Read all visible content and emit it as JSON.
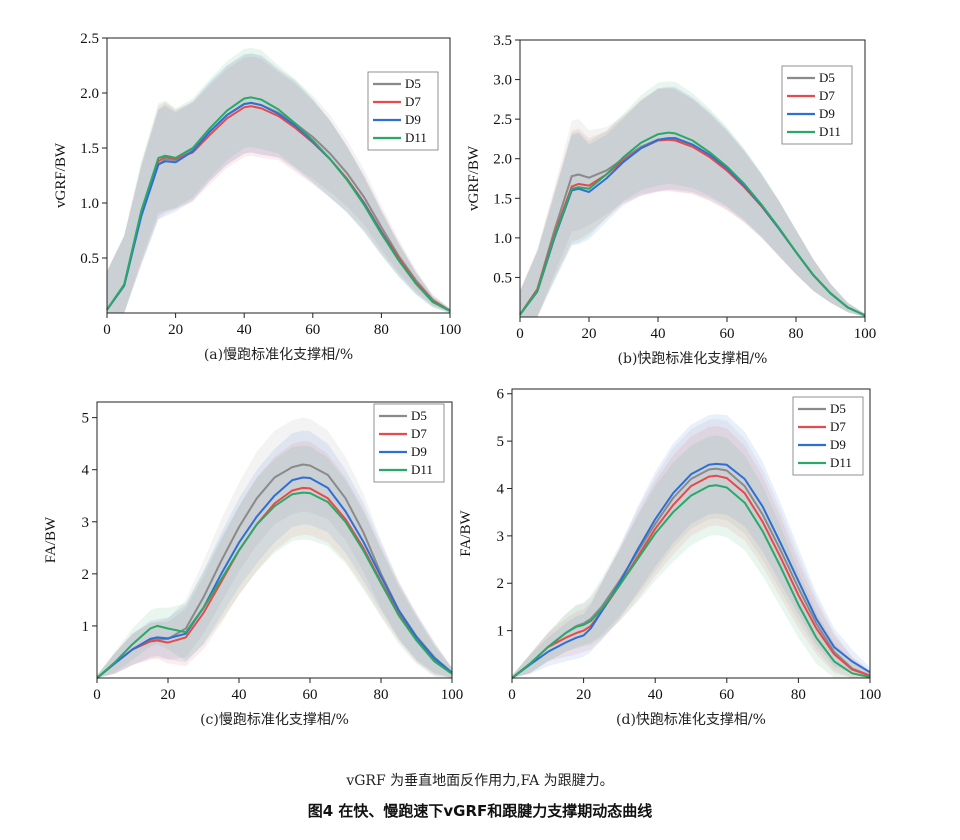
{
  "figure": {
    "note": "vGRF 为垂直地面反作用力,FA 为跟腱力。",
    "title": "图4 在快、慢跑速下vGRF和跟腱力支撑期动态曲线"
  },
  "colors": {
    "D5": "#8a8a8a",
    "D7": "#e8494b",
    "D9": "#2e6fd6",
    "D11": "#2aa866"
  },
  "chart_data": [
    {
      "panel": "a",
      "type": "line",
      "caption": "(a)慢跑标准化支撑相/%",
      "ylabel": "vGRF/BW",
      "xlim": [
        0,
        100
      ],
      "ylim": [
        0,
        2.5
      ],
      "xticks": [
        "0",
        "20",
        "40",
        "60",
        "80",
        "100"
      ],
      "yticks": [
        {
          "v": 0.5,
          "label": "0.5"
        },
        {
          "v": 1.0,
          "label": "1.0"
        },
        {
          "v": 1.5,
          "label": "1.5"
        },
        {
          "v": 2.0,
          "label": "2.0"
        },
        {
          "v": 2.5,
          "label": "2.5"
        }
      ],
      "legend": "top-right",
      "x": [
        0,
        5,
        10,
        15,
        17,
        20,
        25,
        30,
        35,
        40,
        42,
        45,
        50,
        55,
        60,
        65,
        70,
        75,
        80,
        85,
        90,
        95,
        100
      ],
      "band": [
        0.35,
        0.45,
        0.45,
        0.5,
        0.5,
        0.45,
        0.45,
        0.45,
        0.45,
        0.45,
        0.45,
        0.45,
        0.4,
        0.4,
        0.38,
        0.35,
        0.3,
        0.25,
        0.2,
        0.15,
        0.1,
        0.05,
        0.02
      ],
      "series": [
        {
          "name": "D5",
          "values": [
            0.03,
            0.25,
            0.9,
            1.35,
            1.4,
            1.39,
            1.48,
            1.65,
            1.8,
            1.9,
            1.91,
            1.89,
            1.82,
            1.72,
            1.6,
            1.45,
            1.27,
            1.05,
            0.78,
            0.52,
            0.3,
            0.12,
            0.02
          ]
        },
        {
          "name": "D7",
          "values": [
            0.03,
            0.25,
            0.9,
            1.38,
            1.42,
            1.4,
            1.46,
            1.62,
            1.77,
            1.87,
            1.88,
            1.86,
            1.79,
            1.68,
            1.55,
            1.4,
            1.22,
            1.0,
            0.74,
            0.5,
            0.28,
            0.11,
            0.02
          ]
        },
        {
          "name": "D9",
          "values": [
            0.03,
            0.25,
            0.88,
            1.35,
            1.38,
            1.37,
            1.47,
            1.65,
            1.8,
            1.9,
            1.91,
            1.89,
            1.81,
            1.7,
            1.56,
            1.4,
            1.21,
            0.99,
            0.73,
            0.48,
            0.27,
            0.1,
            0.02
          ]
        },
        {
          "name": "D11",
          "values": [
            0.03,
            0.26,
            0.93,
            1.41,
            1.43,
            1.41,
            1.5,
            1.68,
            1.84,
            1.95,
            1.96,
            1.94,
            1.85,
            1.72,
            1.57,
            1.4,
            1.21,
            0.98,
            0.72,
            0.48,
            0.27,
            0.1,
            0.02
          ]
        }
      ]
    },
    {
      "panel": "b",
      "type": "line",
      "caption": "(b)快跑标准化支撑相/%",
      "ylabel": "vGRF/BW",
      "xlim": [
        0,
        100
      ],
      "ylim": [
        0,
        3.5
      ],
      "xticks": [
        "0",
        "20",
        "40",
        "60",
        "80",
        "100"
      ],
      "yticks": [
        {
          "v": 0.5,
          "label": "0.5"
        },
        {
          "v": 1.0,
          "label": "1.0"
        },
        {
          "v": 1.5,
          "label": "1.5"
        },
        {
          "v": 2.0,
          "label": "2.0"
        },
        {
          "v": 2.5,
          "label": "2.5"
        },
        {
          "v": 3.0,
          "label": "3.0"
        },
        {
          "v": 3.5,
          "label": "3.5"
        }
      ],
      "legend": "top-right",
      "x": [
        0,
        5,
        10,
        15,
        17,
        20,
        25,
        30,
        35,
        40,
        43,
        45,
        50,
        55,
        60,
        65,
        70,
        75,
        80,
        85,
        90,
        95,
        100
      ],
      "band": [
        0.3,
        0.5,
        0.55,
        0.7,
        0.7,
        0.6,
        0.55,
        0.55,
        0.6,
        0.65,
        0.65,
        0.65,
        0.6,
        0.55,
        0.5,
        0.45,
        0.4,
        0.35,
        0.28,
        0.2,
        0.12,
        0.06,
        0.02
      ],
      "series": [
        {
          "name": "D5",
          "values": [
            0.03,
            0.35,
            1.1,
            1.78,
            1.8,
            1.76,
            1.85,
            2.0,
            2.15,
            2.24,
            2.25,
            2.24,
            2.16,
            2.02,
            1.85,
            1.65,
            1.4,
            1.12,
            0.82,
            0.53,
            0.3,
            0.12,
            0.02
          ]
        },
        {
          "name": "D7",
          "values": [
            0.03,
            0.35,
            1.05,
            1.65,
            1.68,
            1.66,
            1.8,
            1.98,
            2.13,
            2.23,
            2.24,
            2.23,
            2.15,
            2.02,
            1.85,
            1.64,
            1.4,
            1.12,
            0.82,
            0.53,
            0.3,
            0.12,
            0.02
          ]
        },
        {
          "name": "D9",
          "values": [
            0.03,
            0.32,
            1.0,
            1.6,
            1.62,
            1.58,
            1.75,
            1.96,
            2.13,
            2.24,
            2.26,
            2.26,
            2.18,
            2.05,
            1.88,
            1.66,
            1.41,
            1.12,
            0.82,
            0.53,
            0.3,
            0.12,
            0.02
          ]
        },
        {
          "name": "D11",
          "values": [
            0.03,
            0.33,
            1.02,
            1.62,
            1.64,
            1.62,
            1.8,
            2.02,
            2.2,
            2.31,
            2.33,
            2.32,
            2.23,
            2.08,
            1.9,
            1.68,
            1.42,
            1.13,
            0.82,
            0.53,
            0.3,
            0.12,
            0.02
          ]
        }
      ]
    },
    {
      "panel": "c",
      "type": "line",
      "caption": "(c)慢跑标准化支撑相/%",
      "ylabel": "FA/BW",
      "xlim": [
        0,
        100
      ],
      "ylim": [
        0,
        5.3
      ],
      "xticks": [
        "0",
        "20",
        "40",
        "60",
        "80",
        "100"
      ],
      "yticks": [
        {
          "v": 1,
          "label": "1"
        },
        {
          "v": 2,
          "label": "2"
        },
        {
          "v": 3,
          "label": "3"
        },
        {
          "v": 4,
          "label": "4"
        },
        {
          "v": 5,
          "label": "5"
        }
      ],
      "legend": "top-right",
      "x": [
        0,
        5,
        10,
        15,
        17,
        20,
        25,
        30,
        35,
        40,
        45,
        50,
        55,
        58,
        60,
        65,
        70,
        75,
        80,
        85,
        90,
        95,
        100
      ],
      "band": [
        0.05,
        0.2,
        0.3,
        0.35,
        0.35,
        0.4,
        0.55,
        0.7,
        0.8,
        0.85,
        0.9,
        0.9,
        0.9,
        0.9,
        0.9,
        0.85,
        0.8,
        0.75,
        0.65,
        0.55,
        0.45,
        0.3,
        0.1
      ],
      "series": [
        {
          "name": "D5",
          "values": [
            0.0,
            0.28,
            0.55,
            0.72,
            0.74,
            0.75,
            0.95,
            1.55,
            2.25,
            2.9,
            3.45,
            3.85,
            4.05,
            4.1,
            4.08,
            3.9,
            3.45,
            2.8,
            2.0,
            1.3,
            0.8,
            0.4,
            0.1
          ]
        },
        {
          "name": "D7",
          "values": [
            0.0,
            0.28,
            0.55,
            0.7,
            0.72,
            0.68,
            0.78,
            1.25,
            1.85,
            2.45,
            2.95,
            3.35,
            3.6,
            3.65,
            3.64,
            3.45,
            3.05,
            2.5,
            1.85,
            1.25,
            0.75,
            0.35,
            0.1
          ]
        },
        {
          "name": "D9",
          "values": [
            0.0,
            0.28,
            0.55,
            0.75,
            0.78,
            0.76,
            0.85,
            1.35,
            2.0,
            2.6,
            3.1,
            3.5,
            3.8,
            3.85,
            3.84,
            3.65,
            3.2,
            2.62,
            1.95,
            1.3,
            0.78,
            0.38,
            0.1
          ]
        },
        {
          "name": "D11",
          "values": [
            0.0,
            0.3,
            0.65,
            0.95,
            1.0,
            0.95,
            0.88,
            1.35,
            1.9,
            2.45,
            2.95,
            3.3,
            3.53,
            3.56,
            3.55,
            3.38,
            3.0,
            2.45,
            1.82,
            1.2,
            0.72,
            0.32,
            0.08
          ]
        }
      ]
    },
    {
      "panel": "d",
      "type": "line",
      "caption": "(d)快跑标准化支撑相/%",
      "ylabel": "FA/BW",
      "xlim": [
        0,
        100
      ],
      "ylim": [
        0,
        6.1
      ],
      "xticks": [
        "0",
        "20",
        "40",
        "60",
        "80",
        "100"
      ],
      "yticks": [
        {
          "v": 1,
          "label": "1"
        },
        {
          "v": 2,
          "label": "2"
        },
        {
          "v": 3,
          "label": "3"
        },
        {
          "v": 4,
          "label": "4"
        },
        {
          "v": 5,
          "label": "5"
        },
        {
          "v": 6,
          "label": "6"
        }
      ],
      "legend": "top-right",
      "x": [
        0,
        5,
        10,
        15,
        18,
        20,
        22,
        25,
        30,
        35,
        40,
        45,
        50,
        55,
        57,
        60,
        65,
        70,
        75,
        80,
        85,
        90,
        95,
        100
      ],
      "band": [
        0.05,
        0.2,
        0.3,
        0.4,
        0.45,
        0.45,
        0.5,
        0.6,
        0.75,
        0.9,
        1.0,
        1.05,
        1.05,
        1.05,
        1.05,
        1.05,
        1.0,
        0.95,
        0.85,
        0.7,
        0.55,
        0.4,
        0.25,
        0.1
      ],
      "series": [
        {
          "name": "D5",
          "values": [
            0.0,
            0.3,
            0.65,
            0.95,
            1.1,
            1.15,
            1.25,
            1.5,
            2.05,
            2.65,
            3.25,
            3.8,
            4.2,
            4.4,
            4.42,
            4.38,
            4.05,
            3.45,
            2.7,
            1.9,
            1.15,
            0.55,
            0.2,
            0.05
          ]
        },
        {
          "name": "D7",
          "values": [
            0.0,
            0.3,
            0.65,
            0.85,
            0.95,
            1.0,
            1.1,
            1.4,
            1.95,
            2.55,
            3.15,
            3.65,
            4.05,
            4.25,
            4.27,
            4.22,
            3.9,
            3.3,
            2.55,
            1.75,
            1.05,
            0.5,
            0.18,
            0.05
          ]
        },
        {
          "name": "D9",
          "values": [
            0.0,
            0.28,
            0.55,
            0.75,
            0.85,
            0.9,
            1.05,
            1.4,
            2.0,
            2.7,
            3.35,
            3.9,
            4.3,
            4.5,
            4.52,
            4.5,
            4.2,
            3.62,
            2.85,
            2.05,
            1.25,
            0.65,
            0.35,
            0.12
          ]
        },
        {
          "name": "D11",
          "values": [
            0.0,
            0.3,
            0.65,
            0.95,
            1.08,
            1.12,
            1.2,
            1.45,
            1.95,
            2.5,
            3.05,
            3.5,
            3.85,
            4.05,
            4.07,
            4.02,
            3.7,
            3.1,
            2.35,
            1.55,
            0.85,
            0.35,
            0.1,
            0.02
          ]
        }
      ]
    }
  ]
}
